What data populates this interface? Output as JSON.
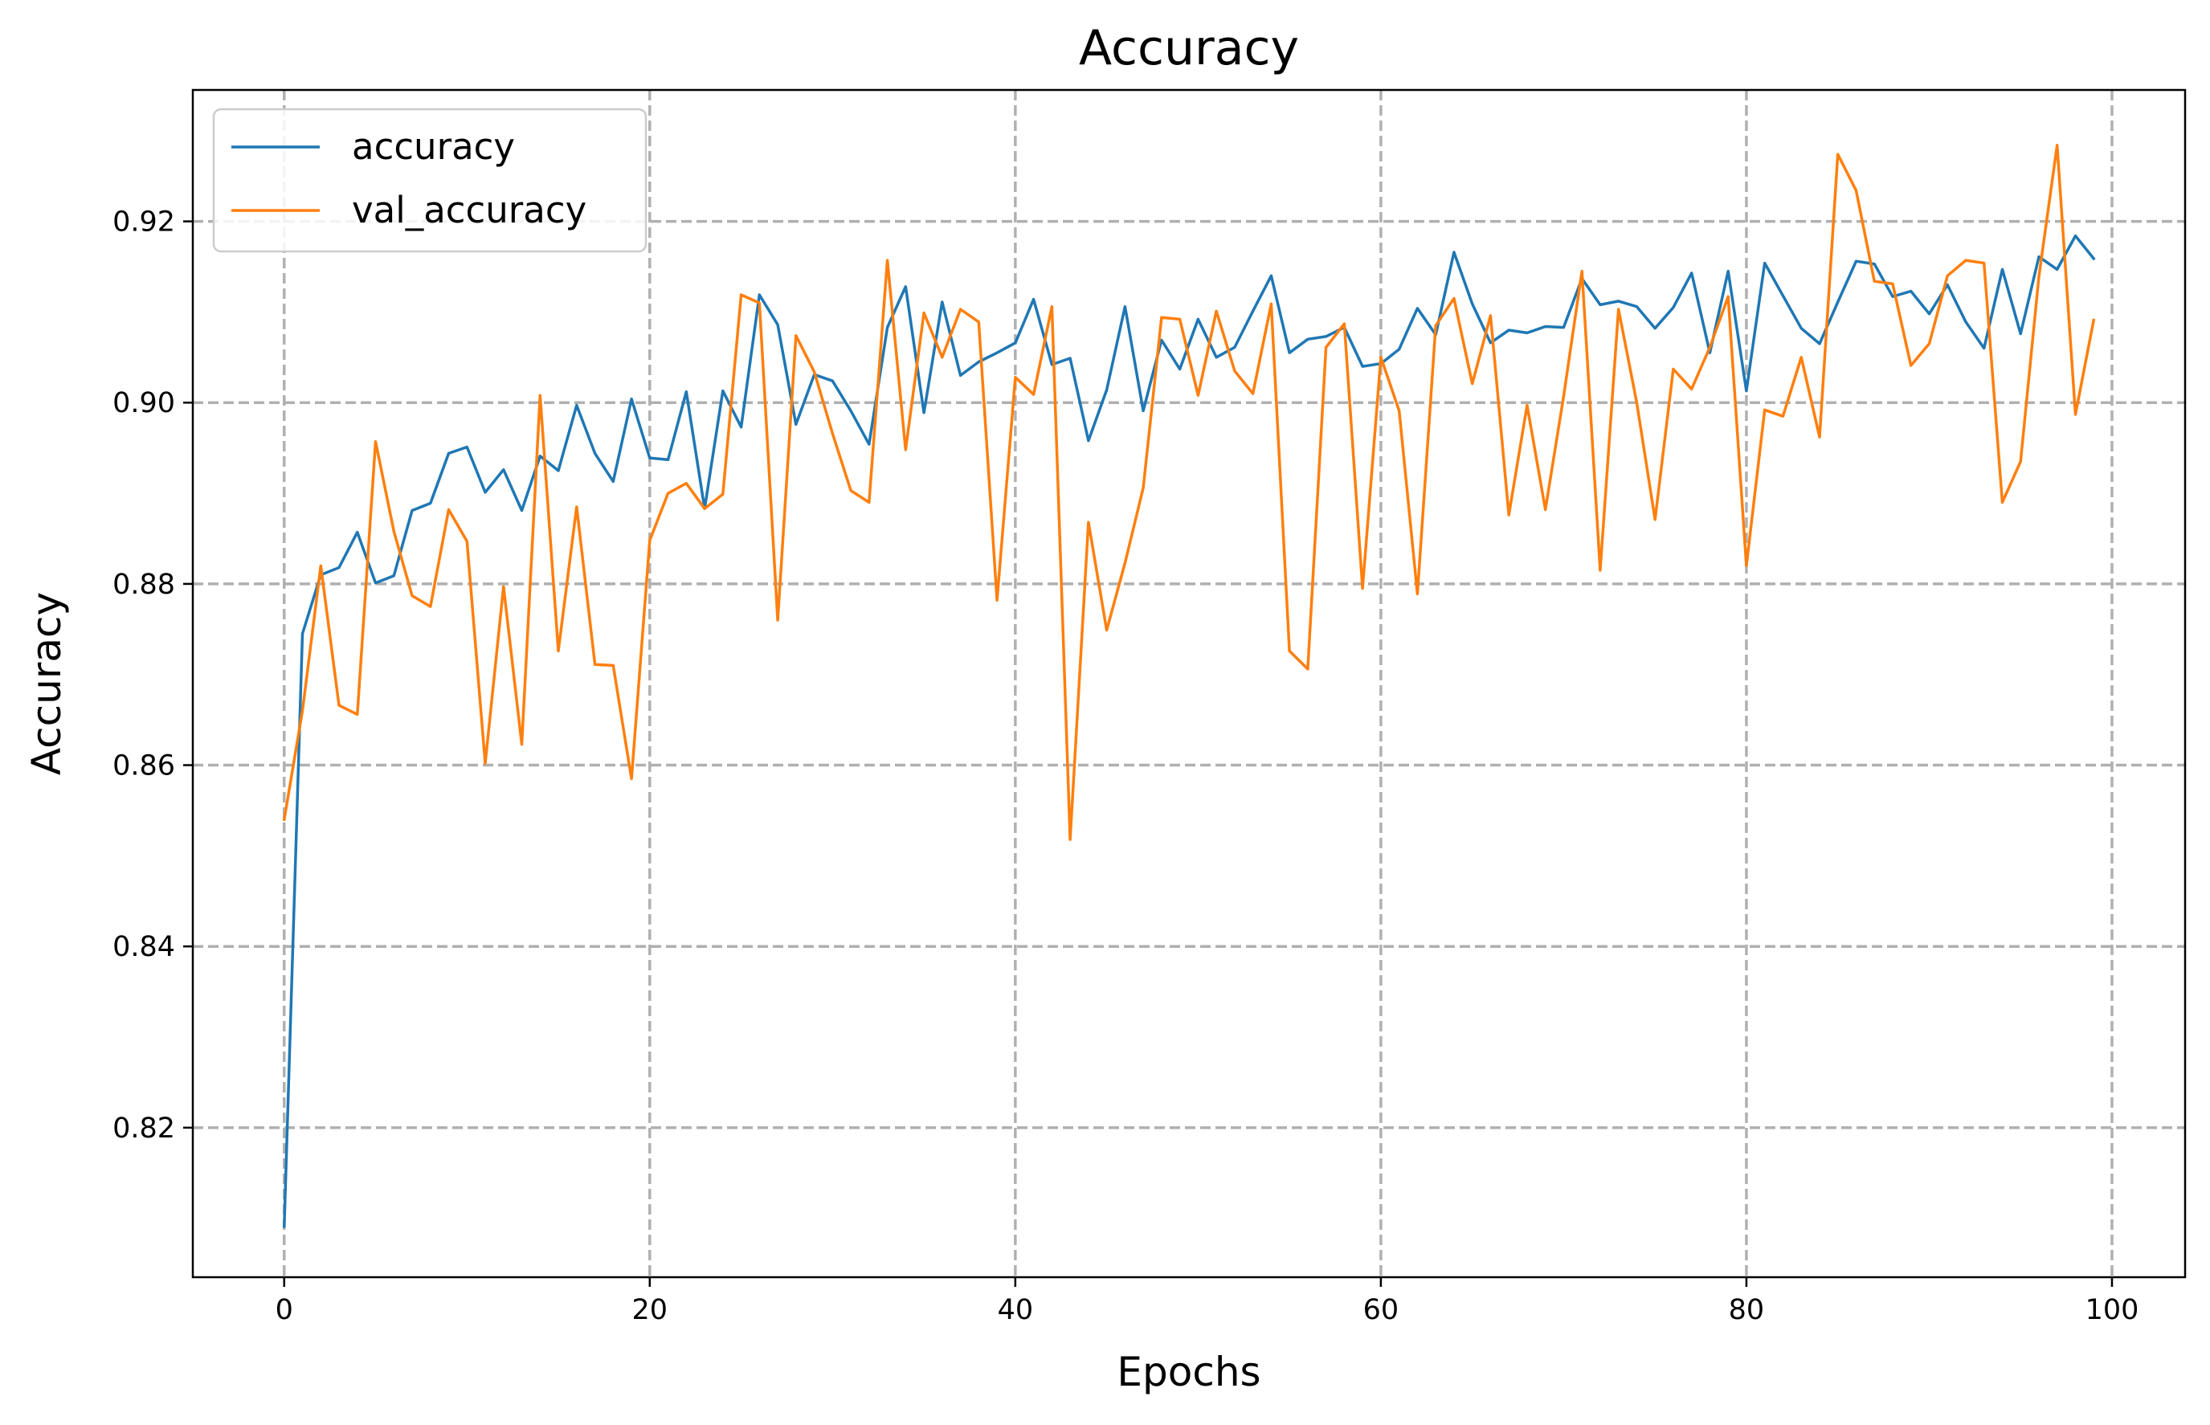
{
  "chart_data": {
    "type": "line",
    "title": "Accuracy",
    "xlabel": "Epochs",
    "ylabel": "Accuracy",
    "xlim": [
      -5,
      104
    ],
    "ylim": [
      0.8035,
      0.9345
    ],
    "xticks": [
      0,
      20,
      40,
      60,
      80,
      100
    ],
    "xtick_labels": [
      "0",
      "20",
      "40",
      "60",
      "80",
      "100"
    ],
    "yticks": [
      0.82,
      0.84,
      0.86,
      0.88,
      0.9,
      0.92
    ],
    "ytick_labels": [
      "0.82",
      "0.84",
      "0.86",
      "0.88",
      "0.90",
      "0.92"
    ],
    "grid": true,
    "legend_position": "upper-left",
    "series": [
      {
        "name": "accuracy",
        "color": "#1f77b4",
        "values": [
          0.8091,
          0.8745,
          0.881,
          0.8818,
          0.8857,
          0.8801,
          0.8809,
          0.8881,
          0.8889,
          0.8944,
          0.8951,
          0.8901,
          0.8926,
          0.8881,
          0.8941,
          0.8925,
          0.8997,
          0.8944,
          0.8913,
          0.9004,
          0.8939,
          0.8937,
          0.9012,
          0.8883,
          0.9013,
          0.8973,
          0.9119,
          0.9086,
          0.8976,
          0.9031,
          0.9024,
          0.8991,
          0.8954,
          0.9083,
          0.9128,
          0.8989,
          0.9111,
          0.903,
          0.9045,
          0.9055,
          0.9066,
          0.9114,
          0.9042,
          0.9049,
          0.8958,
          0.9014,
          0.9106,
          0.8991,
          0.9069,
          0.9037,
          0.9092,
          0.905,
          0.9061,
          0.9101,
          0.914,
          0.9055,
          0.907,
          0.9073,
          0.9083,
          0.904,
          0.9043,
          0.9059,
          0.9104,
          0.9075,
          0.9166,
          0.9109,
          0.9066,
          0.908,
          0.9077,
          0.9084,
          0.9083,
          0.9137,
          0.9108,
          0.9112,
          0.9106,
          0.9082,
          0.9105,
          0.9143,
          0.9055,
          0.9145,
          0.9013,
          0.9154,
          0.9118,
          0.9082,
          0.9065,
          0.9111,
          0.9156,
          0.9153,
          0.9117,
          0.9123,
          0.9098,
          0.913,
          0.9089,
          0.906,
          0.9147,
          0.9076,
          0.9161,
          0.9147,
          0.9184,
          0.9159
        ]
      },
      {
        "name": "val_accuracy",
        "color": "#ff7f0e",
        "values": [
          0.854,
          0.866,
          0.882,
          0.8666,
          0.8656,
          0.8957,
          0.8858,
          0.8787,
          0.8775,
          0.8882,
          0.8847,
          0.8602,
          0.8797,
          0.8623,
          0.9008,
          0.8726,
          0.8885,
          0.8711,
          0.871,
          0.8585,
          0.8848,
          0.89,
          0.8911,
          0.8883,
          0.8899,
          0.9119,
          0.911,
          0.876,
          0.9074,
          0.9034,
          0.8966,
          0.8903,
          0.889,
          0.9157,
          0.8948,
          0.9099,
          0.905,
          0.9103,
          0.9089,
          0.8782,
          0.9028,
          0.9009,
          0.9106,
          0.8518,
          0.8868,
          0.8749,
          0.8823,
          0.8906,
          0.9094,
          0.9092,
          0.9008,
          0.9101,
          0.9035,
          0.901,
          0.9109,
          0.8726,
          0.8706,
          0.9061,
          0.9087,
          0.8795,
          0.905,
          0.8991,
          0.8789,
          0.9085,
          0.9115,
          0.9021,
          0.9096,
          0.8876,
          0.8997,
          0.8882,
          0.9007,
          0.9145,
          0.8815,
          0.9103,
          0.9,
          0.8871,
          0.9037,
          0.9015,
          0.9061,
          0.9117,
          0.882,
          0.8992,
          0.8985,
          0.905,
          0.8962,
          0.9274,
          0.9234,
          0.9134,
          0.9131,
          0.9041,
          0.9065,
          0.914,
          0.9157,
          0.9154,
          0.889,
          0.8935,
          0.9139,
          0.9284,
          0.8987,
          0.9091
        ]
      }
    ]
  }
}
